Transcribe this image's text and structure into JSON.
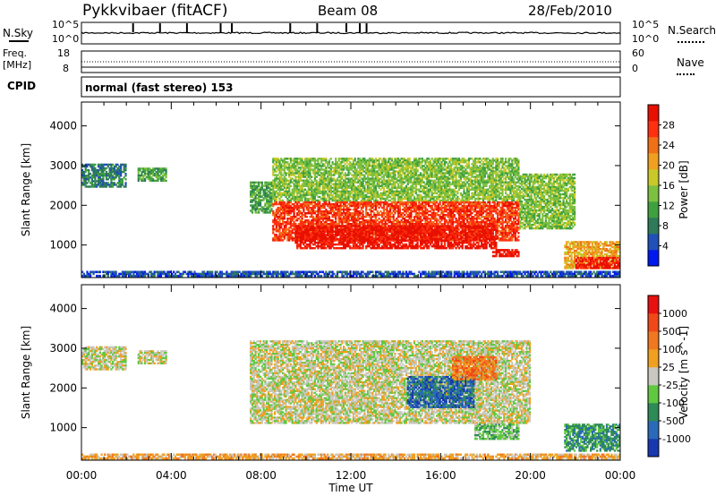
{
  "header": {
    "station": "Pykkvibaer (fitACF)",
    "beam": "Beam 08",
    "date": "28/Feb/2010"
  },
  "panels": {
    "nsky_label": "N.Sky",
    "nsky_ticks": [
      "10^5",
      "10^0"
    ],
    "nsearch_label": "N.Search",
    "nsearch_ticks": [
      "10^5",
      "10^0"
    ],
    "freq_label": "Freq.",
    "freq_unit": "[MHz]",
    "freq_ticks": [
      "18",
      "8"
    ],
    "nave_label": "Nave",
    "nave_ticks": [
      "60",
      "0"
    ],
    "cpid_label": "CPID",
    "cpid_text": "normal (fast stereo) 153"
  },
  "chart_data": [
    {
      "type": "heatmap",
      "name": "power",
      "ylabel": "Slant Range [km]",
      "yticks": [
        "4000",
        "3000",
        "2000",
        "1000"
      ],
      "ylim": [
        180,
        4600
      ],
      "xlim": [
        "00:00",
        "24:00"
      ],
      "colorbar_label": "Power [dB]",
      "colorbar_ticks": [
        "28",
        "24",
        "20",
        "16",
        "12",
        "8",
        "4"
      ],
      "colorbar_colors": [
        "#0018f0",
        "#2050b8",
        "#2e7a5a",
        "#3fa040",
        "#7cc040",
        "#c8c828",
        "#f0a020",
        "#f07018",
        "#ff3010",
        "#e81000"
      ],
      "regions": [
        {
          "t0": 0.0,
          "t1": 2.0,
          "r0": 2450,
          "r1": 3050,
          "level": 2
        },
        {
          "t0": 2.5,
          "t1": 3.8,
          "r0": 2600,
          "r1": 2950,
          "level": 3
        },
        {
          "t0": 7.5,
          "t1": 8.5,
          "r0": 1800,
          "r1": 2600,
          "level": 3
        },
        {
          "t0": 8.5,
          "t1": 19.5,
          "r0": 2100,
          "r1": 3200,
          "level": 4
        },
        {
          "t0": 8.5,
          "t1": 19.5,
          "r0": 1100,
          "r1": 2100,
          "level": 8
        },
        {
          "t0": 9.5,
          "t1": 18.5,
          "r0": 900,
          "r1": 1500,
          "level": 9
        },
        {
          "t0": 18.3,
          "t1": 19.5,
          "r0": 700,
          "r1": 900,
          "level": 9
        },
        {
          "t0": 19.5,
          "t1": 22.0,
          "r0": 1400,
          "r1": 2800,
          "level": 4
        },
        {
          "t0": 21.5,
          "t1": 24.0,
          "r0": 400,
          "r1": 1100,
          "level": 6
        },
        {
          "t0": 22.0,
          "t1": 24.0,
          "r0": 400,
          "r1": 700,
          "level": 9
        },
        {
          "t0": 0.0,
          "t1": 24.0,
          "r0": 200,
          "r1": 350,
          "level": 1
        }
      ]
    },
    {
      "type": "heatmap",
      "name": "velocity",
      "ylabel": "Slant Range [km]",
      "yticks": [
        "4000",
        "3000",
        "2000",
        "1000"
      ],
      "ylim": [
        180,
        4600
      ],
      "xlim": [
        "00:00",
        "24:00"
      ],
      "xticks": [
        "00:00",
        "04:00",
        "08:00",
        "12:00",
        "16:00",
        "20:00",
        "00:00"
      ],
      "xlabel": "Time UT",
      "colorbar_label": "Velocity [m s^-1]",
      "colorbar_ticks": [
        "1000",
        "500",
        "100",
        "25",
        "-25",
        "-100",
        "-500",
        "-1000"
      ],
      "colorbar_colors": [
        "#1838b0",
        "#2a6ab8",
        "#2e8a56",
        "#60c840",
        "#c8c8c0",
        "#f0a020",
        "#f07820",
        "#f04818",
        "#e81010"
      ],
      "regions": [
        {
          "t0": 0.0,
          "t1": 2.0,
          "r0": 2450,
          "r1": 3050,
          "level": 4
        },
        {
          "t0": 2.5,
          "t1": 3.8,
          "r0": 2600,
          "r1": 2950,
          "level": 4
        },
        {
          "t0": 7.5,
          "t1": 20.0,
          "r0": 1100,
          "r1": 3200,
          "level": 4
        },
        {
          "t0": 14.5,
          "t1": 17.5,
          "r0": 1500,
          "r1": 2300,
          "level": 1
        },
        {
          "t0": 17.5,
          "t1": 19.5,
          "r0": 700,
          "r1": 1100,
          "level": 3
        },
        {
          "t0": 16.5,
          "t1": 18.5,
          "r0": 2200,
          "r1": 2800,
          "level": 6
        },
        {
          "t0": 21.5,
          "t1": 24.0,
          "r0": 400,
          "r1": 1100,
          "level": 2
        },
        {
          "t0": 0.0,
          "t1": 24.0,
          "r0": 200,
          "r1": 350,
          "level": 5
        }
      ]
    }
  ]
}
